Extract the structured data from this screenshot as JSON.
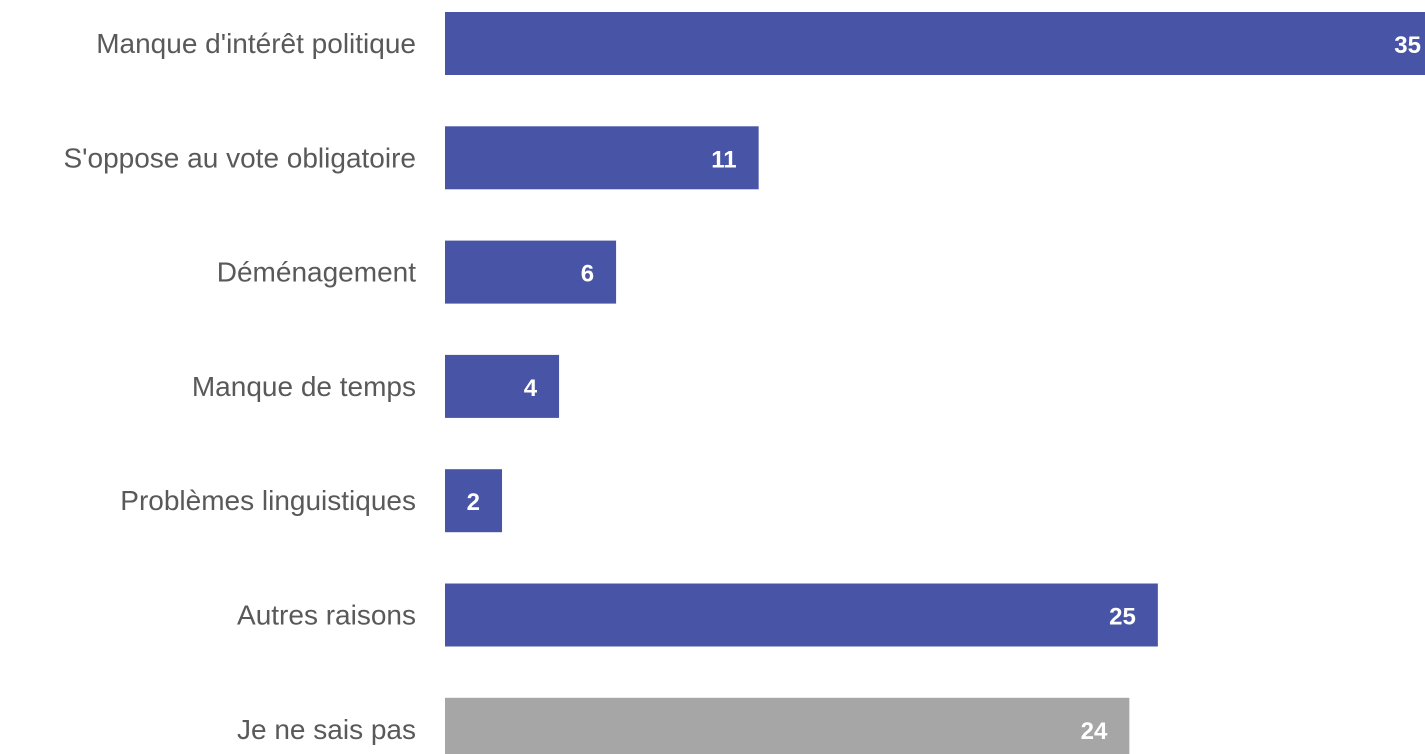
{
  "chart_data": {
    "type": "bar",
    "orientation": "horizontal",
    "categories": [
      "Manque d'intérêt politique",
      "S'oppose au vote obligatoire",
      "Déménagement",
      "Manque de temps",
      "Problèmes linguistiques",
      "Autres raisons",
      "Je ne sais pas"
    ],
    "values": [
      35,
      11,
      6,
      4,
      2,
      25,
      24
    ],
    "bar_colors": [
      "#4854A5",
      "#4854A5",
      "#4854A5",
      "#4854A5",
      "#4854A5",
      "#4854A5",
      "#A6A6A6"
    ],
    "data_labels": [
      "35",
      "11",
      "6",
      "4",
      "2",
      "25",
      "24"
    ],
    "xlim": [
      0,
      35
    ],
    "title": "",
    "xlabel": "",
    "ylabel": "",
    "grid": false,
    "legend": "none"
  }
}
